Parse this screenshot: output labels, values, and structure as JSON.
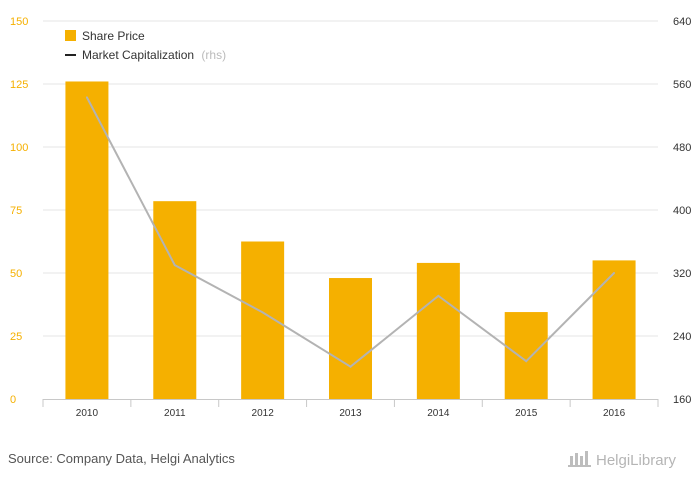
{
  "chart_data": {
    "type": "bar",
    "categories": [
      "2010",
      "2011",
      "2012",
      "2013",
      "2014",
      "2015",
      "2016"
    ],
    "series": [
      {
        "name": "Share Price",
        "axis": "left",
        "kind": "bar",
        "color": "#f5b000",
        "values": [
          126,
          78.5,
          62.5,
          48,
          54,
          34.5,
          55
        ]
      },
      {
        "name": "Market Capitalization",
        "axis": "right",
        "kind": "line",
        "color": "#b3b3b3",
        "values": [
          543,
          330,
          270,
          201,
          291,
          208,
          320
        ]
      }
    ],
    "y_left": {
      "min": 0,
      "max": 150,
      "ticks": [
        0,
        25,
        50,
        75,
        100,
        125,
        150
      ]
    },
    "y_right": {
      "min": 160,
      "max": 640,
      "ticks": [
        160,
        240,
        320,
        400,
        480,
        560,
        640
      ]
    },
    "legend": {
      "bar_label": "Share Price",
      "line_label": "Market Capitalization",
      "line_note": "(rhs)",
      "position": "top-left"
    },
    "grid": true
  },
  "footer": {
    "source": "Source: Company Data, Helgi Analytics",
    "logo": "HelgiLibrary"
  }
}
